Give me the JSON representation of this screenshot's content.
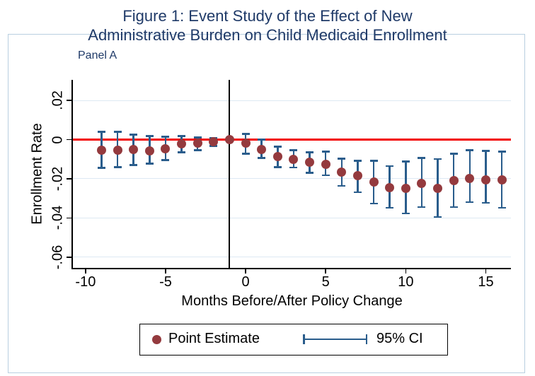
{
  "title": {
    "line1": "Figure 1: Event Study of the Effect of New",
    "line2": "Administrative Burden on Child Medicaid Enrollment"
  },
  "panel_label": "Panel A",
  "colors": {
    "title_navy": "#1f3a68",
    "marker_maroon": "#943a3e",
    "ci_navy": "#2a5d8c",
    "zero_line_red": "#f20000",
    "event_line_black": "#000000",
    "gridline": "#dde9f3",
    "graph_border": "#b9cfe0",
    "axis_black": "#000000"
  },
  "legend": {
    "point_estimate_label": "Point Estimate",
    "ci_label": "95% CI"
  },
  "chart_data": {
    "type": "scatter",
    "title": "Figure 1: Event Study of the Effect of New Administrative Burden on Child Medicaid Enrollment",
    "subtitle": "Panel A",
    "xlabel": "Months Before/After Policy Change",
    "ylabel": "Enrollment Rate",
    "x_ticks": [
      -10,
      -5,
      0,
      5,
      10,
      15
    ],
    "y_ticks": [
      0.02,
      0,
      -0.02,
      -0.04,
      -0.06
    ],
    "y_tick_labels": [
      ".02",
      "0",
      "-.02",
      "-.04",
      "-.06"
    ],
    "xlim": [
      -10.79,
      16.57
    ],
    "ylim": [
      -0.0655,
      0.0305
    ],
    "grid": "horizontal-only",
    "hline_y": 0,
    "vline_x": -1,
    "reference_month": -1,
    "legend_position": "bottom",
    "legend_entries": [
      "Point Estimate",
      "95% CI"
    ],
    "series": [
      {
        "name": "Point Estimate",
        "months": [
          -9,
          -8,
          -7,
          -6,
          -5,
          -4,
          -3,
          -2,
          -1,
          0,
          1,
          2,
          3,
          4,
          5,
          6,
          7,
          8,
          9,
          10,
          11,
          12,
          13,
          14,
          15,
          16
        ],
        "estimates": [
          -0.0054,
          -0.0054,
          -0.005,
          -0.0057,
          -0.0047,
          -0.0022,
          -0.0018,
          -0.0011,
          0,
          -0.0018,
          -0.005,
          -0.0086,
          -0.01,
          -0.0115,
          -0.0126,
          -0.0165,
          -0.0183,
          -0.0215,
          -0.0244,
          -0.0248,
          -0.0222,
          -0.0248,
          -0.0208,
          -0.0197,
          -0.0205,
          -0.0205
        ],
        "ci_low": [
          -0.0144,
          -0.014,
          -0.0129,
          -0.0122,
          -0.0104,
          -0.0065,
          -0.0054,
          -0.0032,
          0,
          -0.0072,
          -0.0093,
          -0.014,
          -0.0143,
          -0.0169,
          -0.0183,
          -0.0237,
          -0.0269,
          -0.0326,
          -0.0348,
          -0.0377,
          -0.0344,
          -0.0395,
          -0.0344,
          -0.0319,
          -0.0323,
          -0.0348
        ],
        "ci_high": [
          0.0039,
          0.0039,
          0.0025,
          0.0018,
          0.0014,
          0.0018,
          0.0011,
          0.0007,
          0,
          0.0029,
          0.0,
          -0.0036,
          -0.0054,
          -0.0065,
          -0.0061,
          -0.0097,
          -0.0108,
          -0.0108,
          -0.0136,
          -0.0111,
          -0.0093,
          -0.01,
          -0.0072,
          -0.0054,
          -0.0057,
          -0.0061
        ]
      }
    ]
  }
}
